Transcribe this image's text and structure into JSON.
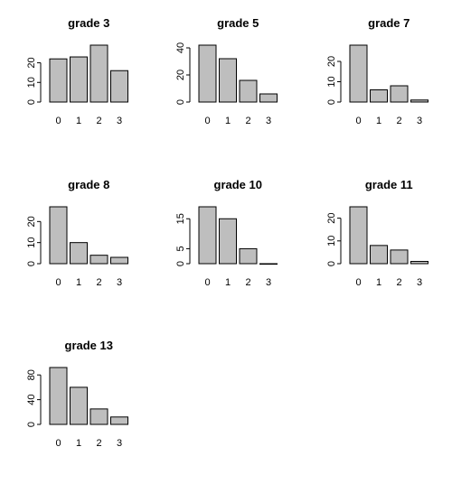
{
  "chart_data": [
    {
      "type": "bar",
      "title": "grade 3",
      "categories": [
        "0",
        "1",
        "2",
        "3"
      ],
      "values": [
        22,
        23,
        29,
        16
      ],
      "ylim": [
        0,
        29
      ],
      "yticks": [
        0,
        10,
        20
      ]
    },
    {
      "type": "bar",
      "title": "grade 5",
      "categories": [
        "0",
        "1",
        "2",
        "3"
      ],
      "values": [
        42,
        32,
        16,
        6
      ],
      "ylim": [
        0,
        42
      ],
      "yticks": [
        0,
        20,
        40
      ]
    },
    {
      "type": "bar",
      "title": "grade 7",
      "categories": [
        "0",
        "1",
        "2",
        "3"
      ],
      "values": [
        28,
        6,
        8,
        1
      ],
      "ylim": [
        0,
        28
      ],
      "yticks": [
        0,
        10,
        20
      ]
    },
    {
      "type": "bar",
      "title": "grade 8",
      "categories": [
        "0",
        "1",
        "2",
        "3"
      ],
      "values": [
        27,
        10,
        4,
        3
      ],
      "ylim": [
        0,
        27
      ],
      "yticks": [
        0,
        10,
        20
      ]
    },
    {
      "type": "bar",
      "title": "grade 10",
      "categories": [
        "0",
        "1",
        "2",
        "3"
      ],
      "values": [
        19,
        15,
        5,
        0
      ],
      "ylim": [
        0,
        19
      ],
      "yticks": [
        0,
        5,
        15
      ]
    },
    {
      "type": "bar",
      "title": "grade 11",
      "categories": [
        "0",
        "1",
        "2",
        "3"
      ],
      "values": [
        25,
        8,
        6,
        1
      ],
      "ylim": [
        0,
        25
      ],
      "yticks": [
        0,
        10,
        20
      ]
    },
    {
      "type": "bar",
      "title": "grade 13",
      "categories": [
        "0",
        "1",
        "2",
        "3"
      ],
      "values": [
        92,
        60,
        25,
        12
      ],
      "ylim": [
        0,
        92
      ],
      "yticks": [
        0,
        40,
        80
      ]
    }
  ]
}
